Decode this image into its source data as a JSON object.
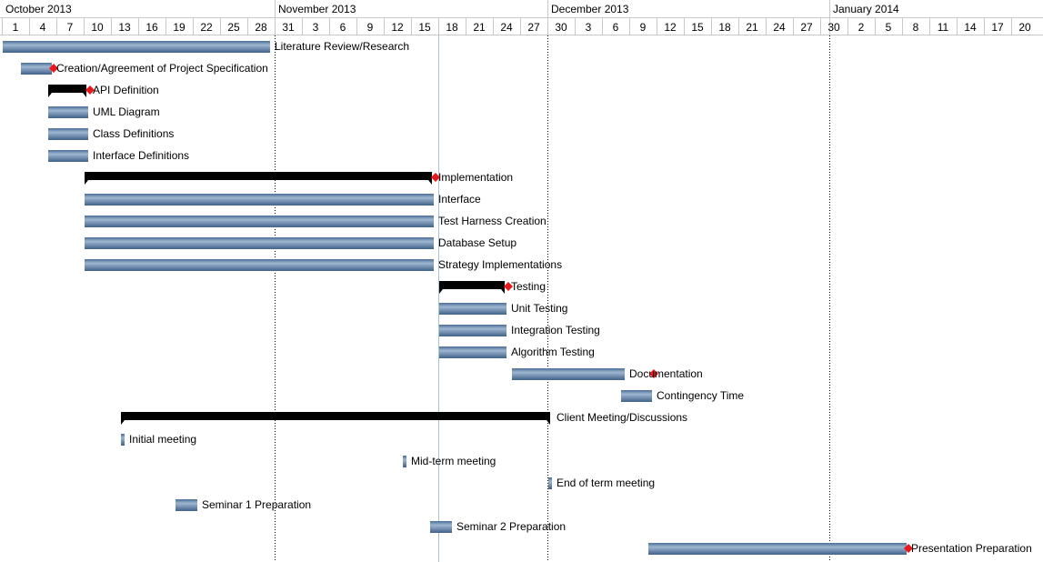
{
  "chart_data": {
    "type": "gantt",
    "months": [
      {
        "label": "October 2013",
        "start": "2013-10-01"
      },
      {
        "label": "November 2013",
        "start": "2013-10-31"
      },
      {
        "label": "December 2013",
        "start": "2013-11-30"
      },
      {
        "label": "January 2014",
        "start": "2013-12-31"
      }
    ],
    "date_range": [
      "2013-10-01",
      "2014-01-22"
    ],
    "tick_interval_days": 3,
    "tick_labels": [
      "1",
      "4",
      "7",
      "10",
      "13",
      "16",
      "19",
      "22",
      "25",
      "28",
      "31",
      "3",
      "6",
      "9",
      "12",
      "15",
      "18",
      "21",
      "24",
      "27",
      "30",
      "3",
      "6",
      "9",
      "12",
      "15",
      "18",
      "21",
      "24",
      "27",
      "30",
      "2",
      "5",
      "8",
      "11",
      "14",
      "17",
      "20"
    ],
    "vertical_markers": [
      {
        "date": "2013-10-31",
        "style": "dotted"
      },
      {
        "date": "2013-11-30",
        "style": "dotted"
      },
      {
        "date": "2013-12-31",
        "style": "dotted"
      },
      {
        "date": "2013-11-18",
        "style": "today"
      }
    ],
    "tasks": [
      {
        "name": "Literature Review/Research",
        "start": "2013-10-01",
        "end": "2013-10-30",
        "kind": "task"
      },
      {
        "name": "Creation/Agreement of Project Specification",
        "start": "2013-10-03",
        "end": "2013-10-06",
        "kind": "task",
        "milestone": "2013-10-06"
      },
      {
        "name": "API Definition",
        "start": "2013-10-06",
        "end": "2013-10-10",
        "kind": "summary",
        "milestone": "2013-10-10"
      },
      {
        "name": "UML Diagram",
        "start": "2013-10-06",
        "end": "2013-10-10",
        "kind": "task"
      },
      {
        "name": "Class Definitions",
        "start": "2013-10-06",
        "end": "2013-10-10",
        "kind": "task"
      },
      {
        "name": "Interface Definitions",
        "start": "2013-10-06",
        "end": "2013-10-10",
        "kind": "task"
      },
      {
        "name": "Implementation",
        "start": "2013-10-10",
        "end": "2013-11-17",
        "kind": "summary",
        "milestone": "2013-11-17"
      },
      {
        "name": "Interface",
        "start": "2013-10-10",
        "end": "2013-11-17",
        "kind": "task"
      },
      {
        "name": "Test Harness Creation",
        "start": "2013-10-10",
        "end": "2013-11-17",
        "kind": "task"
      },
      {
        "name": "Database Setup",
        "start": "2013-10-10",
        "end": "2013-11-17",
        "kind": "task"
      },
      {
        "name": "Strategy Implementations",
        "start": "2013-10-10",
        "end": "2013-11-17",
        "kind": "task"
      },
      {
        "name": "Testing",
        "start": "2013-11-18",
        "end": "2013-11-25",
        "kind": "summary",
        "milestone": "2013-11-25"
      },
      {
        "name": "Unit Testing",
        "start": "2013-11-18",
        "end": "2013-11-25",
        "kind": "task"
      },
      {
        "name": "Integration Testing",
        "start": "2013-11-18",
        "end": "2013-11-25",
        "kind": "task"
      },
      {
        "name": "Algorithm Testing",
        "start": "2013-11-18",
        "end": "2013-11-25",
        "kind": "task"
      },
      {
        "name": "Documentation",
        "start": "2013-11-26",
        "end": "2013-12-08",
        "kind": "task",
        "milestone": "2013-12-11",
        "label_over_bar_end": true
      },
      {
        "name": "Contingency Time",
        "start": "2013-12-08",
        "end": "2013-12-11",
        "kind": "task"
      },
      {
        "name": "Client Meeting/Discussions",
        "start": "2013-10-14",
        "end": "2013-11-30",
        "kind": "summary"
      },
      {
        "name": "Initial meeting",
        "start": "2013-10-14",
        "end": "2013-10-14",
        "kind": "task"
      },
      {
        "name": "Mid-term meeting",
        "start": "2013-11-14",
        "end": "2013-11-14",
        "kind": "task"
      },
      {
        "name": "End of term meeting",
        "start": "2013-11-30",
        "end": "2013-11-30",
        "kind": "task"
      },
      {
        "name": "Seminar 1 Preparation",
        "start": "2013-10-20",
        "end": "2013-10-22",
        "kind": "task"
      },
      {
        "name": "Seminar 2 Preparation",
        "start": "2013-11-17",
        "end": "2013-11-19",
        "kind": "task"
      },
      {
        "name": "Presentation Preparation",
        "start": "2013-12-11",
        "end": "2014-01-08",
        "kind": "task",
        "milestone": "2014-01-08"
      }
    ],
    "colors": {
      "task_bar_top": "#4a6f97",
      "task_bar_mid": "#9fb6cf",
      "task_bar_bottom": "#3f628a",
      "summary_bar": "#000000",
      "milestone": "#e8191d",
      "grid_line": "#c8c8c8",
      "month_separator": "#000000",
      "today_line": "#9ec6cf"
    }
  }
}
